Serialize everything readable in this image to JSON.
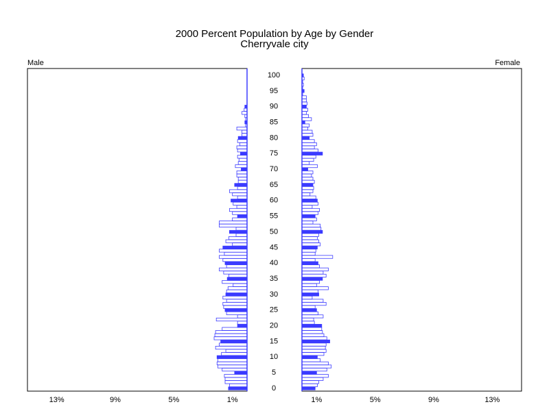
{
  "chart_data": {
    "type": "pyramid",
    "title": "2000 Percent Population by Age by Gender",
    "subtitle": "Cherryvale city",
    "categories": [
      "0",
      null,
      null,
      null,
      null,
      "5",
      null,
      null,
      null,
      null,
      "10",
      null,
      null,
      null,
      null,
      "15",
      null,
      null,
      null,
      null,
      "20",
      null,
      null,
      null,
      null,
      "25",
      null,
      null,
      null,
      null,
      "30",
      null,
      null,
      null,
      null,
      "35",
      null,
      null,
      null,
      null,
      "40",
      null,
      null,
      null,
      null,
      "45",
      null,
      null,
      null,
      null,
      "50",
      null,
      null,
      null,
      null,
      "55",
      null,
      null,
      null,
      null,
      "60",
      null,
      null,
      null,
      null,
      "65",
      null,
      null,
      null,
      null,
      "70",
      null,
      null,
      null,
      null,
      "75",
      null,
      null,
      null,
      null,
      "80",
      null,
      null,
      null,
      null,
      "85",
      null,
      null,
      null,
      null,
      "90",
      null,
      null,
      null,
      null,
      "95",
      null,
      null,
      null,
      null,
      "100"
    ],
    "series": [
      {
        "name": "Male",
        "color": "#3b3bff",
        "values": [
          1.27,
          1.2,
          1.5,
          1.5,
          1.55,
          0.85,
          1.7,
          2.0,
          2.05,
          2.0,
          2.05,
          1.75,
          1.45,
          2.15,
          1.9,
          1.8,
          2.25,
          2.2,
          2.15,
          1.7,
          0.65,
          0.65,
          2.1,
          0.65,
          1.4,
          1.5,
          1.6,
          1.65,
          1.4,
          1.65,
          1.45,
          1.4,
          1.3,
          0.95,
          1.7,
          1.35,
          1.25,
          1.6,
          1.9,
          1.4,
          1.5,
          1.65,
          1.9,
          1.55,
          1.9,
          1.65,
          1.0,
          1.45,
          1.25,
          0.75,
          1.2,
          0.75,
          1.9,
          1.9,
          1.0,
          0.65,
          1.0,
          1.2,
          0.7,
          0.95,
          1.1,
          0.65,
          1.0,
          1.2,
          0.65,
          0.85,
          0.6,
          0.6,
          0.7,
          0.7,
          0.4,
          0.8,
          0.6,
          0.55,
          0.65,
          0.45,
          0.65,
          0.7,
          0.5,
          0.65,
          0.6,
          0.35,
          0.35,
          0.7,
          0.1,
          0.15,
          0.1,
          0.15,
          0.35,
          0.2,
          0.15,
          0,
          0,
          0,
          0,
          0,
          0,
          0,
          0,
          0,
          0
        ]
      },
      {
        "name": "Female",
        "color": "#3b3bff",
        "values": [
          0.9,
          1.05,
          1.15,
          1.45,
          1.8,
          1.0,
          1.7,
          2.0,
          1.8,
          1.25,
          1.05,
          1.5,
          1.65,
          1.6,
          1.65,
          1.9,
          1.7,
          1.5,
          1.4,
          1.35,
          1.35,
          0.85,
          0.8,
          1.45,
          1.1,
          1.0,
          0.9,
          1.65,
          1.45,
          0.7,
          1.15,
          1.1,
          1.8,
          1.0,
          1.2,
          1.4,
          1.65,
          1.45,
          1.8,
          1.2,
          1.1,
          0.9,
          2.1,
          0.9,
          0.95,
          1.05,
          1.25,
          1.15,
          1.05,
          1.15,
          1.4,
          1.3,
          1.25,
          0.75,
          1.0,
          0.9,
          1.1,
          1.2,
          0.7,
          1.1,
          1.05,
          0.95,
          0.55,
          0.75,
          0.8,
          0.75,
          0.85,
          0.75,
          0.65,
          0.75,
          0.4,
          1.05,
          0.5,
          0.8,
          0.95,
          1.4,
          1.1,
          0.85,
          1.0,
          0.85,
          0.5,
          0.75,
          0.7,
          0.4,
          0.5,
          0.2,
          0.65,
          0.45,
          0.3,
          0.4,
          0.3,
          0.35,
          0.3,
          0.3,
          0.05,
          0.15,
          0.05,
          0.1,
          0.05,
          0.15,
          0.1
        ]
      }
    ],
    "xlim": [
      0,
      15
    ],
    "xticks": [
      {
        "value": 13,
        "label": "13%"
      },
      {
        "value": 9,
        "label": "9%"
      },
      {
        "value": 5,
        "label": "5%"
      },
      {
        "value": 1,
        "label": "1%"
      }
    ]
  }
}
